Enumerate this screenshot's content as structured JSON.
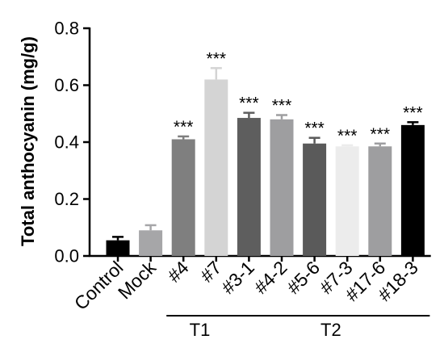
{
  "chart_data": {
    "type": "bar",
    "title": "",
    "xlabel": "",
    "ylabel": "Total anthocyanin (mg/g)",
    "ylim": [
      0,
      0.8
    ],
    "yticks": [
      "0.0",
      "0.2",
      "0.4",
      "0.6",
      "0.8"
    ],
    "grid": false,
    "legend": "none",
    "categories": [
      "Control",
      "Mock",
      "#4",
      "#7",
      "#3-1",
      "#4-2",
      "#5-6",
      "#7-3",
      "#17-6",
      "#18-3"
    ],
    "values": [
      0.055,
      0.09,
      0.41,
      0.62,
      0.485,
      0.48,
      0.395,
      0.385,
      0.385,
      0.46
    ],
    "errors": [
      0.012,
      0.018,
      0.01,
      0.04,
      0.018,
      0.015,
      0.02,
      0.004,
      0.01,
      0.01
    ],
    "significance": [
      "",
      "",
      "***",
      "***",
      "***",
      "***",
      "***",
      "***",
      "***",
      "***"
    ],
    "colors": [
      "#000000",
      "#a6a6a8",
      "#7f7f7f",
      "#d4d4d4",
      "#5e5e5e",
      "#9e9ea0",
      "#5a5a5a",
      "#ececec",
      "#9e9ea0",
      "#000000"
    ],
    "groups": [
      {
        "label": "T1",
        "categories": [
          "#4",
          "#7"
        ]
      },
      {
        "label": "T2",
        "categories": [
          "#3-1",
          "#4-2",
          "#5-6",
          "#7-3",
          "#17-6",
          "#18-3"
        ]
      }
    ]
  }
}
